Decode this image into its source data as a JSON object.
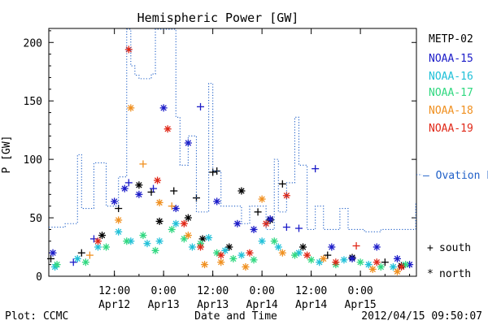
{
  "chart_data": {
    "type": "scatter",
    "title": "Hemispheric Power [GW]",
    "ylabel": "P [GW]",
    "xlabel": "Date and Time",
    "xlim": [
      "2012-04-11T20:00",
      "2012-04-15T13:40"
    ],
    "ylim": [
      0,
      212
    ],
    "yticks": [
      0,
      50,
      100,
      150,
      200
    ],
    "xticks": [
      {
        "at": "2012-04-12T12:00",
        "time": "12:00",
        "date": "Apr12"
      },
      {
        "at": "2012-04-13T00:00",
        "time": "0:00",
        "date": "Apr13"
      },
      {
        "at": "2012-04-13T12:00",
        "time": "12:00",
        "date": "Apr13"
      },
      {
        "at": "2012-04-14T00:00",
        "time": "0:00",
        "date": "Apr14"
      },
      {
        "at": "2012-04-14T12:00",
        "time": "12:00",
        "date": "Apr14"
      },
      {
        "at": "2012-04-15T00:00",
        "time": "0:00",
        "date": "Apr15"
      }
    ],
    "footer_left": "Plot: CCMC",
    "footer_right": "2012/04/15 09:50:07",
    "marker_legend": [
      {
        "symbol": "+",
        "label": "south"
      },
      {
        "symbol": "*",
        "label": "north"
      }
    ],
    "series": [
      {
        "name": "METP-02",
        "color": "#000000",
        "points": [
          [
            "2012-04-11T20:30",
            15,
            "+"
          ],
          [
            "2012-04-12T04:00",
            20,
            "+"
          ],
          [
            "2012-04-12T09:00",
            35,
            "*"
          ],
          [
            "2012-04-12T13:00",
            58,
            "+"
          ],
          [
            "2012-04-12T18:00",
            78,
            "*"
          ],
          [
            "2012-04-12T21:00",
            72,
            "+"
          ],
          [
            "2012-04-12T23:00",
            47,
            "*"
          ],
          [
            "2012-04-13T02:30",
            73,
            "+"
          ],
          [
            "2012-04-13T06:00",
            50,
            "*"
          ],
          [
            "2012-04-13T08:00",
            67,
            "+"
          ],
          [
            "2012-04-13T09:30",
            32,
            "*"
          ],
          [
            "2012-04-13T12:00",
            89,
            "+"
          ],
          [
            "2012-04-13T13:00",
            90,
            "+"
          ],
          [
            "2012-04-13T16:00",
            25,
            "*"
          ],
          [
            "2012-04-13T19:00",
            73,
            "*"
          ],
          [
            "2012-04-13T23:00",
            55,
            "+"
          ],
          [
            "2012-04-14T02:00",
            48,
            "*"
          ],
          [
            "2012-04-14T05:00",
            79,
            "+"
          ],
          [
            "2012-04-14T10:00",
            25,
            "*"
          ],
          [
            "2012-04-14T16:00",
            18,
            "+"
          ],
          [
            "2012-04-14T22:00",
            16,
            "*"
          ],
          [
            "2012-04-15T06:00",
            12,
            "+"
          ],
          [
            "2012-04-15T10:00",
            9,
            "*"
          ]
        ]
      },
      {
        "name": "NOAA-15",
        "color": "#1c1cc8",
        "points": [
          [
            "2012-04-11T21:00",
            20,
            "*"
          ],
          [
            "2012-04-12T02:00",
            12,
            "+"
          ],
          [
            "2012-04-12T07:00",
            32,
            "+"
          ],
          [
            "2012-04-12T12:00",
            64,
            "*"
          ],
          [
            "2012-04-12T14:30",
            75,
            "*"
          ],
          [
            "2012-04-12T15:30",
            80,
            "+"
          ],
          [
            "2012-04-12T18:00",
            70,
            "*"
          ],
          [
            "2012-04-12T21:30",
            75,
            "+"
          ],
          [
            "2012-04-13T00:00",
            144,
            "*"
          ],
          [
            "2012-04-13T03:00",
            58,
            "*"
          ],
          [
            "2012-04-13T06:00",
            114,
            "*"
          ],
          [
            "2012-04-13T09:00",
            145,
            "+"
          ],
          [
            "2012-04-13T13:00",
            64,
            "*"
          ],
          [
            "2012-04-13T18:00",
            45,
            "*"
          ],
          [
            "2012-04-13T22:00",
            40,
            "*"
          ],
          [
            "2012-04-14T02:00",
            49,
            "*"
          ],
          [
            "2012-04-14T06:00",
            42,
            "+"
          ],
          [
            "2012-04-14T09:00",
            41,
            "+"
          ],
          [
            "2012-04-14T13:00",
            92,
            "+"
          ],
          [
            "2012-04-14T17:00",
            25,
            "*"
          ],
          [
            "2012-04-14T22:00",
            15,
            "*"
          ],
          [
            "2012-04-15T04:00",
            25,
            "*"
          ],
          [
            "2012-04-15T09:00",
            15,
            "*"
          ],
          [
            "2012-04-15T12:00",
            10,
            "*"
          ]
        ]
      },
      {
        "name": "NOAA-16",
        "color": "#20c0d8",
        "points": [
          [
            "2012-04-11T21:30",
            8,
            "*"
          ],
          [
            "2012-04-12T03:00",
            15,
            "*"
          ],
          [
            "2012-04-12T08:00",
            25,
            "*"
          ],
          [
            "2012-04-12T13:00",
            38,
            "*"
          ],
          [
            "2012-04-12T16:00",
            30,
            "*"
          ],
          [
            "2012-04-12T20:00",
            28,
            "*"
          ],
          [
            "2012-04-12T23:00",
            30,
            "*"
          ],
          [
            "2012-04-13T03:00",
            45,
            "*"
          ],
          [
            "2012-04-13T07:00",
            25,
            "*"
          ],
          [
            "2012-04-13T11:00",
            33,
            "*"
          ],
          [
            "2012-04-13T15:00",
            22,
            "*"
          ],
          [
            "2012-04-13T19:00",
            18,
            "*"
          ],
          [
            "2012-04-14T00:00",
            30,
            "*"
          ],
          [
            "2012-04-14T04:00",
            25,
            "*"
          ],
          [
            "2012-04-14T09:00",
            20,
            "*"
          ],
          [
            "2012-04-14T14:00",
            12,
            "*"
          ],
          [
            "2012-04-14T20:00",
            14,
            "*"
          ],
          [
            "2012-04-15T02:00",
            10,
            "*"
          ],
          [
            "2012-04-15T08:00",
            8,
            "*"
          ]
        ]
      },
      {
        "name": "NOAA-17",
        "color": "#30d880",
        "points": [
          [
            "2012-04-11T22:00",
            10,
            "*"
          ],
          [
            "2012-04-12T05:00",
            12,
            "*"
          ],
          [
            "2012-04-12T10:00",
            25,
            "*"
          ],
          [
            "2012-04-12T15:00",
            30,
            "*"
          ],
          [
            "2012-04-12T19:00",
            35,
            "*"
          ],
          [
            "2012-04-12T22:00",
            22,
            "*"
          ],
          [
            "2012-04-13T02:00",
            40,
            "*"
          ],
          [
            "2012-04-13T05:00",
            32,
            "*"
          ],
          [
            "2012-04-13T09:00",
            28,
            "*"
          ],
          [
            "2012-04-13T13:00",
            20,
            "*"
          ],
          [
            "2012-04-13T17:00",
            15,
            "*"
          ],
          [
            "2012-04-13T22:00",
            14,
            "*"
          ],
          [
            "2012-04-14T03:00",
            30,
            "*"
          ],
          [
            "2012-04-14T08:00",
            18,
            "*"
          ],
          [
            "2012-04-14T12:00",
            14,
            "*"
          ],
          [
            "2012-04-14T18:00",
            10,
            "*"
          ],
          [
            "2012-04-15T00:00",
            12,
            "*"
          ],
          [
            "2012-04-15T05:00",
            8,
            "*"
          ],
          [
            "2012-04-15T11:00",
            10,
            "*"
          ]
        ]
      },
      {
        "name": "NOAA-18",
        "color": "#f09020",
        "points": [
          [
            "2012-04-12T06:00",
            18,
            "+"
          ],
          [
            "2012-04-12T13:00",
            48,
            "*"
          ],
          [
            "2012-04-12T16:00",
            144,
            "*"
          ],
          [
            "2012-04-12T19:00",
            96,
            "+"
          ],
          [
            "2012-04-12T23:00",
            63,
            "*"
          ],
          [
            "2012-04-13T02:00",
            60,
            "+"
          ],
          [
            "2012-04-13T06:00",
            35,
            "*"
          ],
          [
            "2012-04-13T10:00",
            10,
            "*"
          ],
          [
            "2012-04-13T14:00",
            12,
            "*"
          ],
          [
            "2012-04-13T20:00",
            8,
            "*"
          ],
          [
            "2012-04-14T00:00",
            66,
            "*"
          ],
          [
            "2012-04-14T05:00",
            20,
            "*"
          ],
          [
            "2012-04-14T15:00",
            15,
            "*"
          ],
          [
            "2012-04-15T03:00",
            6,
            "*"
          ],
          [
            "2012-04-15T09:00",
            4,
            "*"
          ]
        ]
      },
      {
        "name": "NOAA-19",
        "color": "#e02818",
        "points": [
          [
            "2012-04-12T08:00",
            30,
            "*"
          ],
          [
            "2012-04-12T15:30",
            194,
            "*"
          ],
          [
            "2012-04-12T22:30",
            82,
            "*"
          ],
          [
            "2012-04-13T01:00",
            126,
            "*"
          ],
          [
            "2012-04-13T05:00",
            45,
            "*"
          ],
          [
            "2012-04-13T09:00",
            25,
            "*"
          ],
          [
            "2012-04-13T14:00",
            18,
            "*"
          ],
          [
            "2012-04-13T21:00",
            20,
            "*"
          ],
          [
            "2012-04-14T01:00",
            45,
            "*"
          ],
          [
            "2012-04-14T06:00",
            69,
            "*"
          ],
          [
            "2012-04-14T11:00",
            18,
            "*"
          ],
          [
            "2012-04-14T18:00",
            12,
            "*"
          ],
          [
            "2012-04-14T23:00",
            26,
            "+"
          ],
          [
            "2012-04-15T04:00",
            12,
            "*"
          ],
          [
            "2012-04-15T10:00",
            8,
            "*"
          ]
        ]
      },
      {
        "name": "— Ovation Prime HPI",
        "color": "#2060c8",
        "style": "dotted-step",
        "points": [
          [
            "2012-04-11T20:00",
            42
          ],
          [
            "2012-04-11T22:00",
            42
          ],
          [
            "2012-04-12T00:00",
            45
          ],
          [
            "2012-04-12T02:00",
            45
          ],
          [
            "2012-04-12T03:00",
            104
          ],
          [
            "2012-04-12T04:00",
            58
          ],
          [
            "2012-04-12T06:00",
            58
          ],
          [
            "2012-04-12T07:00",
            97
          ],
          [
            "2012-04-12T09:00",
            97
          ],
          [
            "2012-04-12T10:00",
            60
          ],
          [
            "2012-04-12T12:00",
            60
          ],
          [
            "2012-04-12T13:00",
            85
          ],
          [
            "2012-04-12T15:00",
            212
          ],
          [
            "2012-04-12T16:00",
            180
          ],
          [
            "2012-04-12T17:00",
            172
          ],
          [
            "2012-04-12T18:00",
            169
          ],
          [
            "2012-04-12T20:00",
            169
          ],
          [
            "2012-04-12T21:00",
            173
          ],
          [
            "2012-04-12T22:00",
            212
          ],
          [
            "2012-04-13T00:00",
            212
          ],
          [
            "2012-04-13T01:00",
            212
          ],
          [
            "2012-04-13T02:00",
            212
          ],
          [
            "2012-04-13T03:00",
            136
          ],
          [
            "2012-04-13T04:00",
            95
          ],
          [
            "2012-04-13T05:00",
            95
          ],
          [
            "2012-04-13T06:00",
            120
          ],
          [
            "2012-04-13T07:00",
            120
          ],
          [
            "2012-04-13T08:00",
            55
          ],
          [
            "2012-04-13T10:00",
            55
          ],
          [
            "2012-04-13T11:00",
            165
          ],
          [
            "2012-04-13T12:00",
            90
          ],
          [
            "2012-04-13T13:00",
            90
          ],
          [
            "2012-04-13T14:00",
            60
          ],
          [
            "2012-04-13T16:00",
            60
          ],
          [
            "2012-04-13T17:00",
            60
          ],
          [
            "2012-04-13T18:00",
            60
          ],
          [
            "2012-04-13T19:00",
            45
          ],
          [
            "2012-04-13T20:00",
            45
          ],
          [
            "2012-04-13T21:00",
            60
          ],
          [
            "2012-04-13T22:00",
            60
          ],
          [
            "2012-04-14T00:00",
            60
          ],
          [
            "2012-04-14T01:00",
            40
          ],
          [
            "2012-04-14T02:00",
            40
          ],
          [
            "2012-04-14T03:00",
            100
          ],
          [
            "2012-04-14T04:00",
            55
          ],
          [
            "2012-04-14T05:00",
            55
          ],
          [
            "2012-04-14T06:00",
            80
          ],
          [
            "2012-04-14T07:00",
            80
          ],
          [
            "2012-04-14T08:00",
            136
          ],
          [
            "2012-04-14T09:00",
            95
          ],
          [
            "2012-04-14T10:00",
            95
          ],
          [
            "2012-04-14T11:00",
            40
          ],
          [
            "2012-04-14T12:00",
            40
          ],
          [
            "2012-04-14T13:00",
            60
          ],
          [
            "2012-04-14T14:00",
            60
          ],
          [
            "2012-04-14T15:00",
            40
          ],
          [
            "2012-04-14T16:00",
            40
          ],
          [
            "2012-04-14T18:00",
            40
          ],
          [
            "2012-04-14T19:00",
            58
          ],
          [
            "2012-04-14T20:00",
            58
          ],
          [
            "2012-04-14T21:00",
            40
          ],
          [
            "2012-04-14T22:00",
            40
          ],
          [
            "2012-04-15T00:00",
            40
          ],
          [
            "2012-04-15T01:00",
            38
          ],
          [
            "2012-04-15T03:00",
            38
          ],
          [
            "2012-04-15T04:00",
            38
          ],
          [
            "2012-04-15T05:00",
            40
          ],
          [
            "2012-04-15T06:00",
            40
          ],
          [
            "2012-04-15T07:00",
            40
          ],
          [
            "2012-04-15T08:00",
            40
          ],
          [
            "2012-04-15T09:00",
            40
          ],
          [
            "2012-04-15T10:00",
            40
          ],
          [
            "2012-04-15T11:00",
            40
          ],
          [
            "2012-04-15T12:00",
            40
          ],
          [
            "2012-04-15T13:00",
            40
          ],
          [
            "2012-04-15T13:30",
            63
          ]
        ]
      }
    ]
  }
}
